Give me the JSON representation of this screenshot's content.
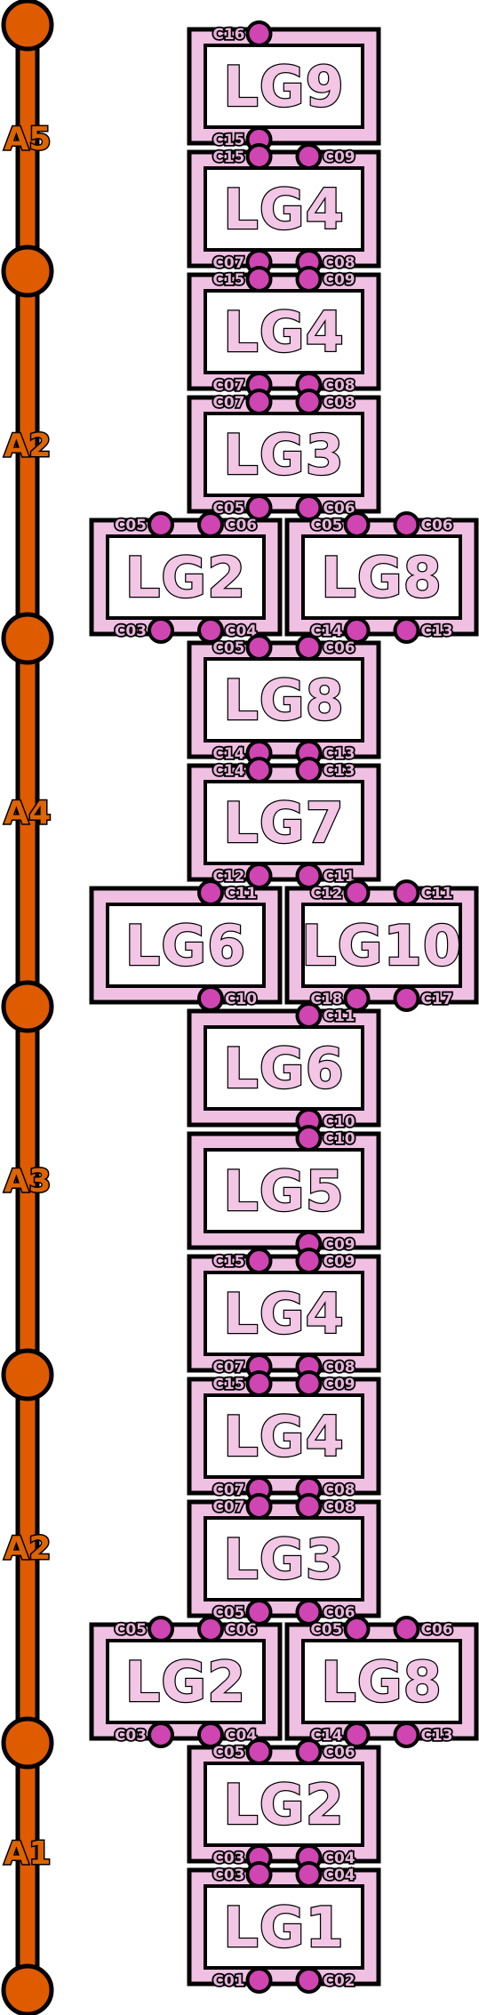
{
  "colors": {
    "track": "#de5b00",
    "block_outer": "#f0c0e2",
    "block_inner": "#ffffff",
    "connector": "#cf45b2",
    "label_fill": "#f2c6e4",
    "stroke": "#000000"
  },
  "track": {
    "segments": [
      "A5",
      "A2",
      "A4",
      "A3",
      "A2",
      "A1"
    ]
  },
  "rows": [
    [
      {
        "label": "LG9",
        "top": [
          "C16"
        ],
        "bottom": [
          "C15"
        ]
      }
    ],
    [
      {
        "label": "LG4",
        "top": [
          "C15",
          "C09"
        ],
        "bottom": [
          "C07",
          "C08"
        ]
      }
    ],
    [
      {
        "label": "LG4",
        "top": [
          "C15",
          "C09"
        ],
        "bottom": [
          "C07",
          "C08"
        ]
      }
    ],
    [
      {
        "label": "LG3",
        "top": [
          "C07",
          "C08"
        ],
        "bottom": [
          "C05",
          "C06"
        ]
      }
    ],
    [
      {
        "label": "LG2",
        "top": [
          "C05",
          "C06"
        ],
        "bottom": [
          "C03",
          "C04"
        ]
      },
      {
        "label": "LG8",
        "top": [
          "C05",
          "C06"
        ],
        "bottom": [
          "C14",
          "C13"
        ]
      }
    ],
    [
      {
        "label": "LG8",
        "top": [
          "C05",
          "C06"
        ],
        "bottom": [
          "C14",
          "C13"
        ]
      }
    ],
    [
      {
        "label": "LG7",
        "top": [
          "C14",
          "C13"
        ],
        "bottom": [
          "C12",
          "C11"
        ]
      }
    ],
    [
      {
        "label": "LG6",
        "top": [
          "",
          "C11"
        ],
        "bottom": [
          "",
          "C10"
        ]
      },
      {
        "label": "LG10",
        "top": [
          "C12",
          "C11"
        ],
        "bottom": [
          "C18",
          "C17"
        ]
      }
    ],
    [
      {
        "label": "LG6",
        "top": [
          "",
          "C11"
        ],
        "bottom": [
          "",
          "C10"
        ]
      }
    ],
    [
      {
        "label": "LG5",
        "top": [
          "",
          "C10"
        ],
        "bottom": [
          "",
          "C09"
        ]
      }
    ],
    [
      {
        "label": "LG4",
        "top": [
          "C15",
          "C09"
        ],
        "bottom": [
          "C07",
          "C08"
        ]
      }
    ],
    [
      {
        "label": "LG4",
        "top": [
          "C15",
          "C09"
        ],
        "bottom": [
          "C07",
          "C08"
        ]
      }
    ],
    [
      {
        "label": "LG3",
        "top": [
          "C07",
          "C08"
        ],
        "bottom": [
          "C05",
          "C06"
        ]
      }
    ],
    [
      {
        "label": "LG2",
        "top": [
          "C05",
          "C06"
        ],
        "bottom": [
          "C03",
          "C04"
        ]
      },
      {
        "label": "LG8",
        "top": [
          "C05",
          "C06"
        ],
        "bottom": [
          "C14",
          "C13"
        ]
      }
    ],
    [
      {
        "label": "LG2",
        "top": [
          "C05",
          "C06"
        ],
        "bottom": [
          "C03",
          "C04"
        ]
      }
    ],
    [
      {
        "label": "LG1",
        "top": [
          "C03",
          "C04"
        ],
        "bottom": [
          "C01",
          "C02"
        ]
      }
    ]
  ]
}
